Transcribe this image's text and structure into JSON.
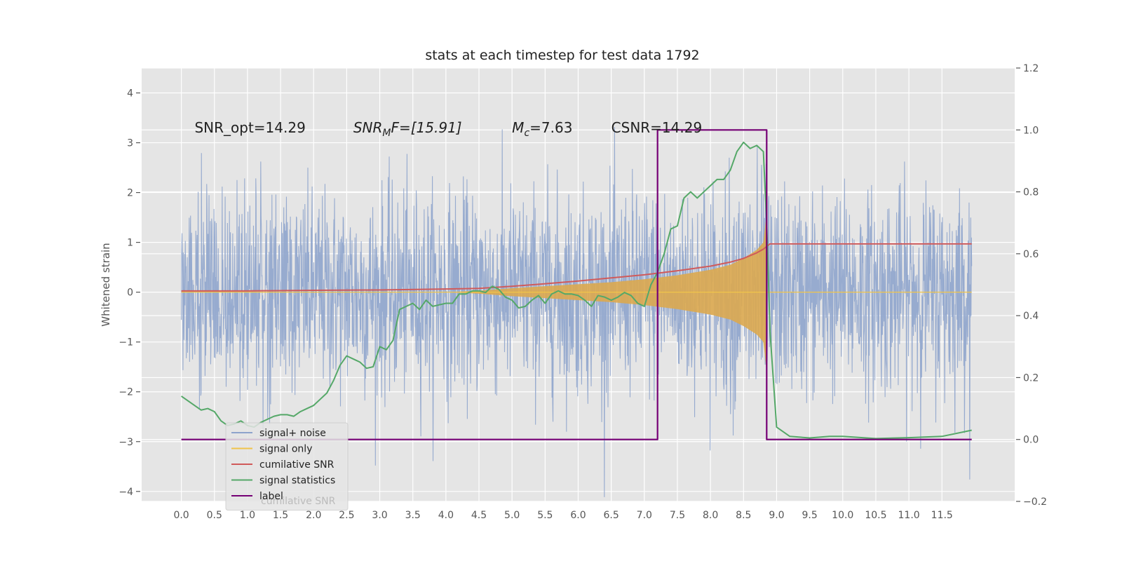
{
  "chart_data": {
    "type": "line",
    "title": "stats at each timestep for test data 1792",
    "xlabel": "",
    "ylabel": "Whitened strain",
    "xlim": [
      -0.6,
      12.6
    ],
    "ylim": [
      -4.2,
      4.5
    ],
    "y2lim": [
      -0.2,
      1.2
    ],
    "x_ticks": [
      0.0,
      0.5,
      1.0,
      1.5,
      2.0,
      2.5,
      3.0,
      3.5,
      4.0,
      4.5,
      5.0,
      5.5,
      6.0,
      6.5,
      7.0,
      7.5,
      8.0,
      8.5,
      9.0,
      9.5,
      10.0,
      10.5,
      11.0,
      11.5
    ],
    "x_tick_labels": [
      "0.0",
      "0.5",
      "1.0",
      "1.5",
      "2.0",
      "2.5",
      "3.0",
      "3.5",
      "4.0",
      "4.5",
      "5.0",
      "5.5",
      "6.0",
      "6.5",
      "7.0",
      "7.5",
      "8.0",
      "8.5",
      "9.0",
      "9.5",
      "10.0",
      "10.5",
      "11.0",
      "11.5"
    ],
    "y_ticks": [
      -4,
      -3,
      -2,
      -1,
      0,
      1,
      2,
      3,
      4
    ],
    "y_tick_labels": [
      "−4",
      "−3",
      "−2",
      "−1",
      "0",
      "1",
      "2",
      "3",
      "4"
    ],
    "y2_ticks": [
      -0.2,
      0.0,
      0.2,
      0.4,
      0.6,
      0.8,
      1.0,
      1.2
    ],
    "y2_tick_labels": [
      "−0.2",
      "0.0",
      "0.2",
      "0.4",
      "0.6",
      "0.8",
      "1.0",
      "1.2"
    ],
    "annotations": [
      {
        "text": "SNR_opt=14.29",
        "x": 0.2,
        "y": 3.3
      },
      {
        "base": "SNR",
        "sub": "M",
        "rest": "F=[15.91]",
        "x": 2.6,
        "y": 3.3
      },
      {
        "base": "M",
        "sub": "c",
        "rest": "=7.63",
        "x": 5.0,
        "y": 3.3
      },
      {
        "text": "CSNR=14.29",
        "x": 6.5,
        "y": 3.3
      }
    ],
    "legend": {
      "location": "lower-left",
      "entries": [
        {
          "label": "signal+ noise",
          "color": "#8ea4cc"
        },
        {
          "label": "signal only",
          "color": "#f0c44a"
        },
        {
          "label": "cumilative SNR",
          "color": "#d05a5a"
        },
        {
          "label": "signal statistics",
          "color": "#55a868"
        },
        {
          "label": "label",
          "color": "#750075"
        }
      ],
      "ghost_text": "cumilative SNR"
    },
    "series": [
      {
        "name": "signal+ noise",
        "axis": "left",
        "color": "#8ea4cc",
        "x_range": [
          0.0,
          11.95
        ],
        "amplitude": 1.0,
        "description": "noisy whitened strain"
      },
      {
        "name": "signal only",
        "axis": "left",
        "color": "#dba84f",
        "envelope": {
          "x": [
            4.0,
            4.5,
            5.0,
            5.5,
            6.0,
            6.5,
            7.0,
            7.5,
            8.0,
            8.3,
            8.5,
            8.7,
            8.8,
            8.85,
            8.9,
            11.95
          ],
          "amp": [
            0.0,
            0.03,
            0.08,
            0.12,
            0.16,
            0.2,
            0.26,
            0.34,
            0.45,
            0.55,
            0.68,
            0.85,
            1.0,
            1.6,
            0.0,
            0.0
          ]
        }
      },
      {
        "name": "cumilative SNR",
        "axis": "right",
        "color": "#d05a5a",
        "x": [
          0.0,
          1.0,
          2.0,
          3.0,
          4.0,
          4.5,
          5.0,
          5.5,
          6.0,
          6.5,
          7.0,
          7.5,
          8.0,
          8.3,
          8.5,
          8.7,
          8.8,
          8.9,
          9.5,
          11.95
        ],
        "values": [
          0.48,
          0.48,
          0.482,
          0.483,
          0.486,
          0.488,
          0.495,
          0.503,
          0.512,
          0.522,
          0.532,
          0.545,
          0.56,
          0.573,
          0.585,
          0.603,
          0.615,
          0.632,
          0.632,
          0.632
        ]
      },
      {
        "name": "signal statistics",
        "axis": "right",
        "color": "#55a868",
        "x": [
          0.0,
          0.1,
          0.2,
          0.3,
          0.4,
          0.5,
          0.6,
          0.7,
          0.8,
          0.9,
          1.0,
          1.1,
          1.2,
          1.3,
          1.4,
          1.5,
          1.6,
          1.7,
          1.8,
          1.9,
          2.0,
          2.1,
          2.2,
          2.3,
          2.4,
          2.5,
          2.6,
          2.7,
          2.8,
          2.9,
          3.0,
          3.1,
          3.2,
          3.3,
          3.4,
          3.5,
          3.6,
          3.7,
          3.8,
          3.9,
          4.0,
          4.1,
          4.2,
          4.3,
          4.4,
          4.5,
          4.6,
          4.7,
          4.8,
          4.9,
          5.0,
          5.1,
          5.2,
          5.3,
          5.4,
          5.5,
          5.6,
          5.7,
          5.8,
          5.9,
          6.0,
          6.1,
          6.2,
          6.3,
          6.4,
          6.5,
          6.6,
          6.7,
          6.8,
          6.9,
          7.0,
          7.1,
          7.2,
          7.3,
          7.4,
          7.5,
          7.6,
          7.7,
          7.8,
          7.9,
          8.0,
          8.1,
          8.2,
          8.3,
          8.4,
          8.5,
          8.6,
          8.7,
          8.8,
          8.85,
          8.9,
          9.0,
          9.2,
          9.5,
          9.8,
          10.0,
          10.5,
          11.0,
          11.5,
          11.95
        ],
        "values": [
          0.14,
          0.125,
          0.11,
          0.095,
          0.1,
          0.09,
          0.06,
          0.045,
          0.05,
          0.06,
          0.045,
          0.04,
          0.055,
          0.065,
          0.075,
          0.08,
          0.08,
          0.075,
          0.09,
          0.1,
          0.11,
          0.13,
          0.15,
          0.19,
          0.24,
          0.27,
          0.26,
          0.25,
          0.23,
          0.235,
          0.3,
          0.29,
          0.32,
          0.42,
          0.43,
          0.44,
          0.42,
          0.45,
          0.43,
          0.435,
          0.44,
          0.44,
          0.47,
          0.47,
          0.48,
          0.48,
          0.475,
          0.495,
          0.485,
          0.46,
          0.45,
          0.425,
          0.43,
          0.45,
          0.465,
          0.44,
          0.47,
          0.48,
          0.47,
          0.47,
          0.465,
          0.45,
          0.43,
          0.465,
          0.46,
          0.45,
          0.46,
          0.475,
          0.465,
          0.44,
          0.43,
          0.5,
          0.54,
          0.6,
          0.68,
          0.69,
          0.78,
          0.8,
          0.78,
          0.8,
          0.82,
          0.84,
          0.84,
          0.87,
          0.93,
          0.96,
          0.94,
          0.95,
          0.93,
          0.7,
          0.35,
          0.04,
          0.01,
          0.005,
          0.01,
          0.01,
          0.003,
          0.006,
          0.01,
          0.03
        ]
      },
      {
        "name": "label",
        "axis": "right",
        "color": "#750075",
        "x": [
          0.0,
          7.2,
          7.2,
          8.85,
          8.85,
          11.95
        ],
        "values": [
          0.0,
          0.0,
          1.0,
          1.0,
          0.0,
          0.0
        ]
      }
    ]
  }
}
